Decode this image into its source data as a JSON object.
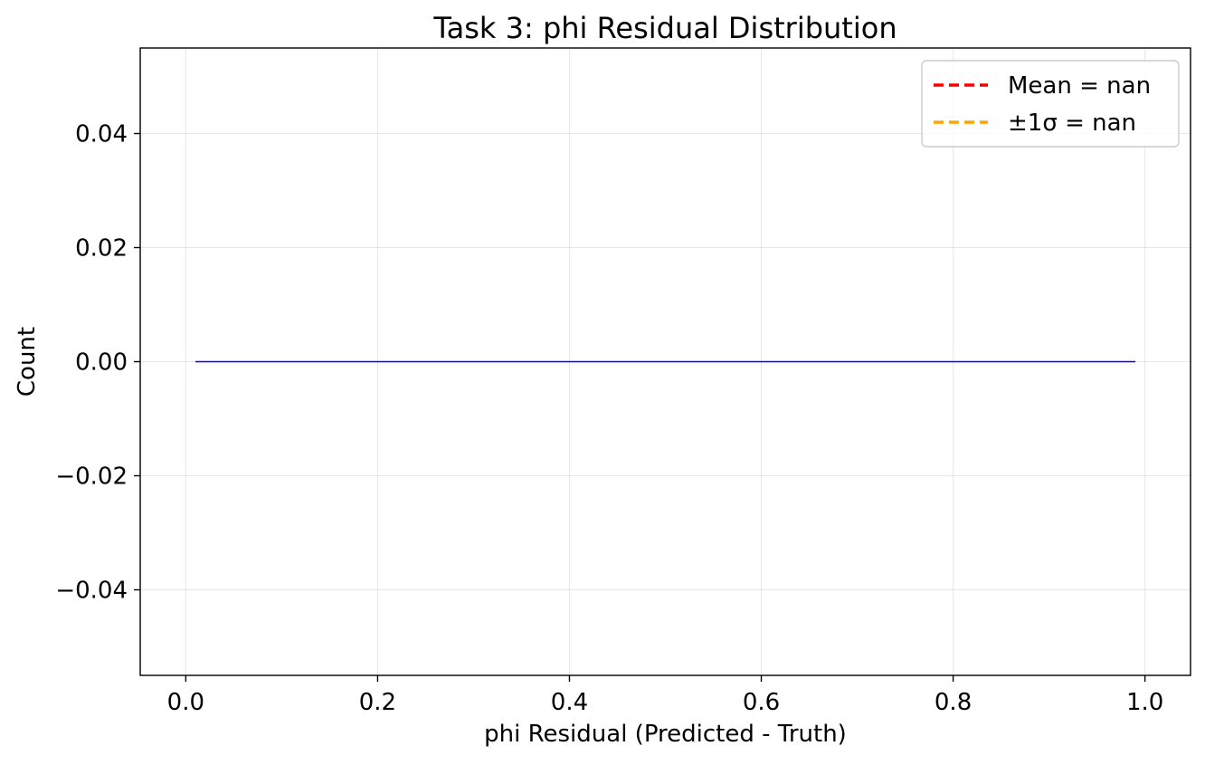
{
  "chart_data": {
    "type": "line",
    "title": "Task 3: phi Residual Distribution",
    "xlabel": "phi Residual (Predicted - Truth)",
    "ylabel": "Count",
    "xlim": [
      -0.0475,
      1.0475
    ],
    "ylim": [
      -0.055,
      0.055
    ],
    "xticks": [
      0.0,
      0.2,
      0.4,
      0.6,
      0.8,
      1.0
    ],
    "xtick_labels": [
      "0.0",
      "0.2",
      "0.4",
      "0.6",
      "0.8",
      "1.0"
    ],
    "yticks": [
      -0.04,
      -0.02,
      0.0,
      0.02,
      0.04
    ],
    "ytick_labels": [
      "−0.04",
      "−0.02",
      "0.00",
      "0.02",
      "0.04"
    ],
    "grid": true,
    "legend_position": "top-right",
    "series": [
      {
        "kind": "step",
        "color": "#0000ff",
        "x": [
          0.01,
          0.99
        ],
        "y": [
          0,
          0
        ]
      }
    ],
    "legend": [
      {
        "label": "Mean = nan",
        "color": "#ff0000",
        "style": "dashed"
      },
      {
        "label": "±1σ = nan",
        "color": "#ffa500",
        "style": "dashed"
      }
    ]
  }
}
